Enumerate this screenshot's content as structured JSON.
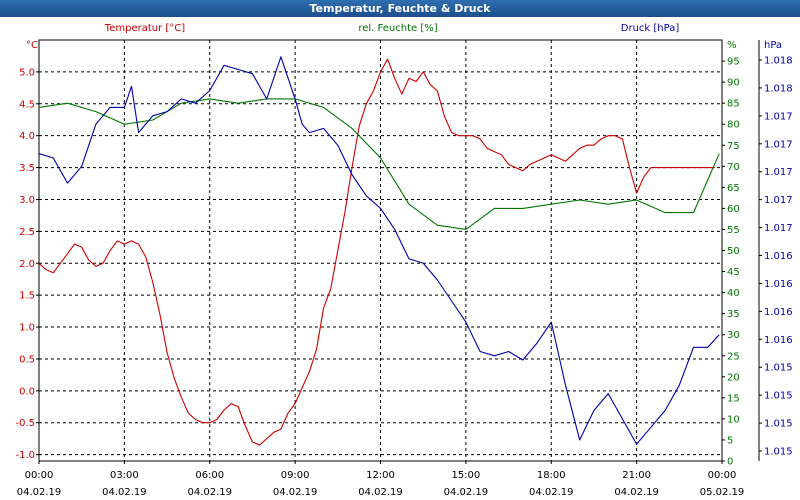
{
  "window": {
    "title": "Temperatur, Feuchte & Druck"
  },
  "colors": {
    "temperature": "#cc0000",
    "humidity": "#007700",
    "pressure": "#0000aa",
    "grid": "#000000",
    "text": "#000000"
  },
  "chart_data": {
    "type": "line",
    "title": "Temperatur, Feuchte & Druck",
    "grid": true,
    "x_ticks": [
      {
        "time": "00:00",
        "date": "04.02.19",
        "h": 0
      },
      {
        "time": "03:00",
        "date": "04.02.19",
        "h": 3
      },
      {
        "time": "06:00",
        "date": "04.02.19",
        "h": 6
      },
      {
        "time": "09:00",
        "date": "04.02.19",
        "h": 9
      },
      {
        "time": "12:00",
        "date": "04.02.19",
        "h": 12
      },
      {
        "time": "15:00",
        "date": "04.02.19",
        "h": 15
      },
      {
        "time": "18:00",
        "date": "04.02.19",
        "h": 18
      },
      {
        "time": "21:00",
        "date": "04.02.19",
        "h": 21
      },
      {
        "time": "00:00",
        "date": "05.02.19",
        "h": 24
      }
    ],
    "xlim": [
      0,
      24
    ],
    "axes": {
      "temperature": {
        "label": "Temperatur [°C]",
        "unit": "°C",
        "side": "left",
        "ylim": [
          -1.1,
          5.5
        ],
        "ticks": [
          "5.0",
          "4.5",
          "4.0",
          "3.5",
          "3.0",
          "2.5",
          "2.0",
          "1.5",
          "1.0",
          "0.5",
          "0.0",
          "-0.5",
          "-1.0"
        ]
      },
      "humidity": {
        "label": "rel. Feuchte [%]",
        "unit": "%",
        "side": "right",
        "ylim": [
          0,
          100
        ],
        "ticks": [
          "95",
          "90",
          "85",
          "80",
          "75",
          "70",
          "65",
          "60",
          "55",
          "50",
          "45",
          "40",
          "35",
          "30",
          "25",
          "20",
          "15",
          "10",
          "5",
          "0"
        ]
      },
      "pressure": {
        "label": "Druck [hPa]",
        "unit": "hPa",
        "side": "right-outer",
        "ticks": [
          "1.018",
          "1.018",
          "1.017",
          "1.017",
          "1.017",
          "1.017",
          "1.017",
          "1.016",
          "1.016",
          "1.016",
          "1.016",
          "1.015",
          "1.015",
          "1.015",
          "1.015"
        ]
      }
    },
    "series": [
      {
        "name": "Temperatur [°C]",
        "axis": "temperature",
        "x": [
          0,
          0.25,
          0.5,
          0.75,
          1,
          1.25,
          1.5,
          1.75,
          2,
          2.25,
          2.5,
          2.75,
          3,
          3.25,
          3.5,
          3.75,
          4,
          4.25,
          4.5,
          4.75,
          5,
          5.25,
          5.5,
          5.75,
          6,
          6.25,
          6.5,
          6.75,
          7,
          7.25,
          7.5,
          7.75,
          8,
          8.25,
          8.5,
          8.75,
          9,
          9.25,
          9.5,
          9.75,
          10,
          10.25,
          10.5,
          10.75,
          11,
          11.25,
          11.5,
          11.75,
          12,
          12.25,
          12.5,
          12.75,
          13,
          13.25,
          13.5,
          13.75,
          14,
          14.25,
          14.5,
          14.75,
          15,
          15.25,
          15.5,
          15.75,
          16,
          16.25,
          16.5,
          16.75,
          17,
          17.25,
          17.5,
          17.75,
          18,
          18.25,
          18.5,
          18.75,
          19,
          19.25,
          19.5,
          19.75,
          20,
          20.25,
          20.5,
          20.75,
          21,
          21.25,
          21.5,
          21.75,
          22,
          22.25,
          22.5,
          22.75,
          23,
          23.25,
          23.5,
          23.75,
          24
        ],
        "values": [
          2.0,
          1.9,
          1.85,
          2.0,
          2.15,
          2.3,
          2.25,
          2.05,
          1.95,
          2.0,
          2.2,
          2.35,
          2.3,
          2.35,
          2.3,
          2.1,
          1.7,
          1.2,
          0.6,
          0.2,
          -0.1,
          -0.35,
          -0.45,
          -0.5,
          -0.5,
          -0.45,
          -0.3,
          -0.2,
          -0.25,
          -0.55,
          -0.8,
          -0.85,
          -0.75,
          -0.65,
          -0.6,
          -0.35,
          -0.2,
          0.05,
          0.3,
          0.65,
          1.3,
          1.6,
          2.2,
          2.8,
          3.5,
          4.15,
          4.5,
          4.7,
          5.0,
          5.2,
          4.9,
          4.65,
          4.9,
          4.85,
          5.0,
          4.8,
          4.7,
          4.3,
          4.05,
          4.0,
          4.0,
          4.0,
          3.95,
          3.8,
          3.75,
          3.7,
          3.55,
          3.5,
          3.45,
          3.55,
          3.6,
          3.65,
          3.7,
          3.65,
          3.6,
          3.7,
          3.8,
          3.85,
          3.85,
          3.95,
          4.0,
          4.0,
          3.95,
          3.5,
          3.1,
          3.35,
          3.5,
          3.5,
          3.5,
          3.5,
          3.5,
          3.5,
          3.5,
          3.5,
          3.5,
          3.5,
          3.5
        ],
        "end_h": 23.9
      },
      {
        "name": "rel. Feuchte [%]",
        "axis": "humidity",
        "x": [
          0,
          1,
          2,
          3,
          4,
          5,
          6,
          7,
          8,
          9,
          10,
          11,
          12,
          13,
          14,
          15,
          16,
          17,
          18,
          19,
          20,
          21,
          22,
          23,
          23.9
        ],
        "values": [
          84,
          85,
          83,
          80,
          81,
          85,
          86,
          85,
          86,
          86,
          84,
          79,
          72,
          61,
          56,
          55,
          60,
          60,
          61,
          62,
          61,
          62,
          59,
          59,
          73
        ]
      },
      {
        "name": "Druck [hPa]",
        "axis": "pressure",
        "note": "plotted on the humidity gridline scale",
        "x": [
          0,
          0.5,
          1,
          1.5,
          2,
          2.5,
          3,
          3.25,
          3.5,
          4,
          4.5,
          5,
          5.5,
          6,
          6.5,
          7,
          7.5,
          8,
          8.5,
          9,
          9.25,
          9.5,
          10,
          10.5,
          11,
          11.5,
          12,
          12.5,
          13,
          13.5,
          14,
          14.5,
          15,
          15.5,
          16,
          16.5,
          17,
          17.5,
          18,
          18.5,
          19,
          19.5,
          20,
          20.5,
          21,
          21.5,
          22,
          22.5,
          23,
          23.5,
          23.9
        ],
        "values": [
          73,
          72,
          66,
          70,
          80,
          84,
          84,
          89,
          78,
          82,
          83,
          86,
          85,
          88,
          94,
          93,
          92,
          86,
          96,
          86,
          80,
          78,
          79,
          75,
          68,
          63,
          60,
          55,
          48,
          47,
          43,
          38,
          33,
          26,
          25,
          26,
          24,
          28,
          33,
          18,
          5,
          12,
          16,
          10,
          4,
          8,
          12,
          18,
          27,
          27,
          30
        ]
      }
    ]
  }
}
